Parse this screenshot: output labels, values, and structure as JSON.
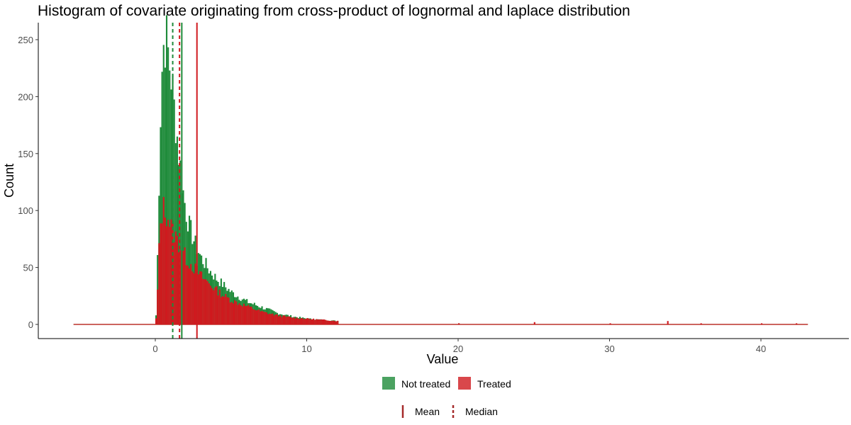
{
  "chart_data": {
    "type": "histogram",
    "title": "Histogram of covariate originating from cross-product of lognormal and laplace distribution",
    "xlabel": "Value",
    "ylabel": "Count",
    "xlim": [
      -5.4,
      43.1
    ],
    "ylim": [
      0,
      260
    ],
    "x_ticks": [
      0,
      10,
      20,
      30,
      40
    ],
    "y_ticks": [
      0,
      50,
      100,
      150,
      200,
      250
    ],
    "grid": false,
    "bin_width": 0.1,
    "series": [
      {
        "name": "Not treated",
        "color": "#1e8b3a",
        "peak_x": 0.6,
        "peak_count": 252,
        "bins": [
          [
            0.0,
            8
          ],
          [
            0.1,
            60
          ],
          [
            0.2,
            125
          ],
          [
            0.3,
            185
          ],
          [
            0.4,
            225
          ],
          [
            0.5,
            245
          ],
          [
            0.6,
            252
          ],
          [
            0.7,
            248
          ],
          [
            0.8,
            238
          ],
          [
            0.9,
            228
          ],
          [
            1.0,
            218
          ],
          [
            1.1,
            205
          ],
          [
            1.2,
            190
          ],
          [
            1.3,
            178
          ],
          [
            1.4,
            165
          ],
          [
            1.5,
            150
          ],
          [
            1.6,
            138
          ],
          [
            1.7,
            126
          ],
          [
            1.8,
            116
          ],
          [
            1.9,
            107
          ],
          [
            2.0,
            98
          ],
          [
            2.2,
            86
          ],
          [
            2.4,
            78
          ],
          [
            2.6,
            70
          ],
          [
            2.8,
            64
          ],
          [
            3.0,
            58
          ],
          [
            3.5,
            48
          ],
          [
            4.0,
            40
          ],
          [
            4.5,
            34
          ],
          [
            5.0,
            28
          ],
          [
            5.5,
            24
          ],
          [
            6.0,
            20
          ],
          [
            7.0,
            15
          ],
          [
            8.0,
            10
          ],
          [
            9.0,
            7
          ],
          [
            10.0,
            5
          ],
          [
            11.0,
            4
          ],
          [
            12.0,
            3
          ],
          [
            14.0,
            2
          ],
          [
            16.0,
            1
          ],
          [
            20.0,
            1
          ]
        ]
      },
      {
        "name": "Treated",
        "color": "#d0191e",
        "peak_x": 0.5,
        "peak_count": 102,
        "bins": [
          [
            0.0,
            5
          ],
          [
            0.1,
            30
          ],
          [
            0.2,
            65
          ],
          [
            0.3,
            88
          ],
          [
            0.4,
            98
          ],
          [
            0.5,
            102
          ],
          [
            0.6,
            100
          ],
          [
            0.7,
            97
          ],
          [
            0.8,
            94
          ],
          [
            0.9,
            90
          ],
          [
            1.0,
            86
          ],
          [
            1.2,
            80
          ],
          [
            1.4,
            74
          ],
          [
            1.6,
            68
          ],
          [
            1.8,
            63
          ],
          [
            2.0,
            58
          ],
          [
            2.5,
            50
          ],
          [
            3.0,
            42
          ],
          [
            3.5,
            36
          ],
          [
            4.0,
            30
          ],
          [
            4.5,
            25
          ],
          [
            5.0,
            21
          ],
          [
            6.0,
            16
          ],
          [
            7.0,
            11
          ],
          [
            8.0,
            8
          ],
          [
            9.0,
            6
          ],
          [
            10.0,
            5
          ],
          [
            11.0,
            4
          ],
          [
            12.0,
            3
          ],
          [
            14.0,
            2
          ],
          [
            16.0,
            1
          ],
          [
            20.0,
            1
          ],
          [
            25.0,
            2
          ],
          [
            30.0,
            1
          ],
          [
            33.8,
            3
          ],
          [
            36.0,
            1
          ],
          [
            40.0,
            1
          ],
          [
            42.3,
            1
          ]
        ]
      }
    ],
    "reference_lines": [
      {
        "series": "Not treated",
        "stat": "Mean",
        "x": 1.75,
        "color": "#1e8b3a",
        "style": "solid"
      },
      {
        "series": "Not treated",
        "stat": "Median",
        "x": 1.15,
        "color": "#1e8b3a",
        "style": "dashed"
      },
      {
        "series": "Treated",
        "stat": "Mean",
        "x": 2.75,
        "color": "#d0191e",
        "style": "solid"
      },
      {
        "series": "Treated",
        "stat": "Median",
        "x": 1.6,
        "color": "#d0191e",
        "style": "dashed"
      }
    ],
    "legend": {
      "placement": "bottom",
      "fill_items": [
        {
          "label": "Not treated",
          "color": "#1e8b3a"
        },
        {
          "label": "Treated",
          "color": "#d0191e"
        }
      ],
      "line_items": [
        {
          "label": "Mean",
          "style": "solid",
          "color": "#a52a2a"
        },
        {
          "label": "Median",
          "style": "dashed",
          "color": "#a52a2a"
        }
      ]
    }
  }
}
